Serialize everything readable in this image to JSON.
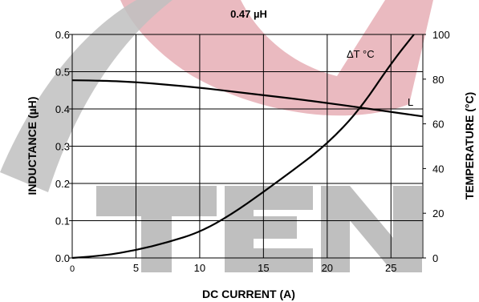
{
  "chart_data": {
    "type": "line",
    "title": "0.47 µH",
    "xlabel": "DC CURRENT (A)",
    "ylabel_left": "INDUCTANCE (µH)",
    "ylabel_right": "TEMPERATURE (°C)",
    "xlim": [
      0,
      27.5
    ],
    "ylim_left": [
      0,
      0.6
    ],
    "ylim_right": [
      0,
      100
    ],
    "x_ticks": [
      "0",
      "5",
      "10",
      "15",
      "20",
      "25"
    ],
    "y_ticks_left": [
      "0.0",
      "0.1",
      "0.2",
      "0.3",
      "0.4",
      "0.5",
      "0.6"
    ],
    "y_ticks_right": [
      "0",
      "20",
      "40",
      "60",
      "80",
      "100"
    ],
    "grid": true,
    "series": [
      {
        "name": "L",
        "axis": "left",
        "color": "#000000",
        "x": [
          0,
          2.5,
          5,
          7.5,
          10,
          12.5,
          15,
          17.5,
          20,
          22.5,
          25,
          27.5
        ],
        "y": [
          0.477,
          0.476,
          0.472,
          0.465,
          0.457,
          0.447,
          0.437,
          0.427,
          0.416,
          0.404,
          0.392,
          0.38
        ]
      },
      {
        "name": "ΔT °C",
        "axis": "right",
        "color": "#000000",
        "x": [
          0,
          2.5,
          5,
          7.5,
          10,
          12.5,
          15,
          17.5,
          20,
          22.5,
          25,
          26.8
        ],
        "y": [
          0,
          1,
          3.5,
          7,
          11.5,
          19.5,
          29.5,
          40,
          51,
          66,
          87,
          100
        ]
      }
    ]
  },
  "watermark": {
    "letters": "TEN",
    "colors": {
      "gray": "#bfbfbf",
      "red": "#e8b3b9"
    }
  }
}
